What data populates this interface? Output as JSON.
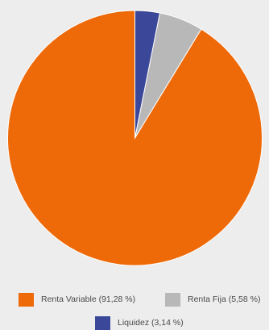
{
  "chart_data": {
    "type": "pie",
    "title": "",
    "slices": [
      {
        "label": "Renta Variable (91,28 %)",
        "value": 91.28,
        "color": "#ee6a09"
      },
      {
        "label": "Renta Fija (5,58 %)",
        "value": 5.58,
        "color": "#b8b8b8"
      },
      {
        "label": "Liquidez (3,14 %)",
        "value": 3.14,
        "color": "#3b4899"
      }
    ],
    "start_direction": "top",
    "orientation": "counterclockwise",
    "legend_position": "bottom"
  }
}
